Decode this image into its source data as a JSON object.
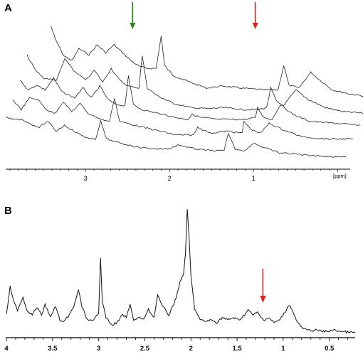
{
  "chart_data": [
    {
      "panel_label": "A",
      "type": "line",
      "xlabel": "[ppm]",
      "x_reversed": true,
      "xlim": [
        3.95,
        -0.15
      ],
      "xticks": [
        3,
        2,
        1
      ],
      "tick_labels": [
        "3",
        "2",
        "1"
      ],
      "stack_offset_ppm": 0.085,
      "arrows": [
        {
          "color": "#2e7d1f",
          "x": 2.44
        },
        {
          "color": "#e02020",
          "x": 0.98
        }
      ],
      "series": [
        {
          "values": [
            [
              3.75,
              0.85
            ],
            [
              3.7,
              0.72
            ],
            [
              3.6,
              0.55
            ],
            [
              3.5,
              0.5
            ],
            [
              3.42,
              0.62
            ],
            [
              3.3,
              0.56
            ],
            [
              3.2,
              0.66
            ],
            [
              3.1,
              0.58
            ],
            [
              3.0,
              0.66
            ],
            [
              2.9,
              0.58
            ],
            [
              2.8,
              0.5
            ],
            [
              2.7,
              0.44
            ],
            [
              2.6,
              0.42
            ],
            [
              2.5,
              0.42
            ],
            [
              2.44,
              0.75
            ],
            [
              2.4,
              0.45
            ],
            [
              2.3,
              0.35
            ],
            [
              2.1,
              0.28
            ],
            [
              1.9,
              0.22
            ],
            [
              1.7,
              0.24
            ],
            [
              1.5,
              0.22
            ],
            [
              1.2,
              0.2
            ],
            [
              1.05,
              0.2
            ],
            [
              0.98,
              0.45
            ],
            [
              0.92,
              0.25
            ],
            [
              0.8,
              0.22
            ],
            [
              0.66,
              0.38
            ],
            [
              0.55,
              0.3
            ],
            [
              0.4,
              0.2
            ],
            [
              0.2,
              0.16
            ],
            [
              0.05,
              0.14
            ],
            [
              -0.1,
              0.14
            ]
          ]
        },
        {
          "values": [
            [
              3.95,
              0.55
            ],
            [
              3.85,
              0.4
            ],
            [
              3.75,
              0.32
            ],
            [
              3.6,
              0.3
            ],
            [
              3.5,
              0.52
            ],
            [
              3.4,
              0.4
            ],
            [
              3.25,
              0.3
            ],
            [
              3.15,
              0.4
            ],
            [
              3.05,
              0.28
            ],
            [
              2.95,
              0.42
            ],
            [
              2.85,
              0.3
            ],
            [
              2.75,
              0.24
            ],
            [
              2.62,
              0.22
            ],
            [
              2.58,
              0.55
            ],
            [
              2.52,
              0.22
            ],
            [
              2.4,
              0.14
            ],
            [
              2.2,
              0.06
            ],
            [
              2.0,
              0.02
            ],
            [
              1.8,
              0.01
            ],
            [
              1.6,
              0.02
            ],
            [
              1.4,
              0.0
            ],
            [
              1.2,
              0.0
            ],
            [
              1.1,
              0.02
            ],
            [
              1.05,
              0.22
            ],
            [
              0.98,
              0.08
            ],
            [
              0.9,
              0.04
            ],
            [
              0.75,
              0.2
            ],
            [
              0.6,
              0.1
            ],
            [
              0.4,
              0.02
            ],
            [
              0.2,
              -0.02
            ],
            [
              -0.1,
              -0.04
            ]
          ]
        },
        {
          "values": [
            [
              3.95,
              0.3
            ],
            [
              3.85,
              0.2
            ],
            [
              3.75,
              0.25
            ],
            [
              3.65,
              0.2
            ],
            [
              3.55,
              0.32
            ],
            [
              3.45,
              0.18
            ],
            [
              3.3,
              0.12
            ],
            [
              3.2,
              0.22
            ],
            [
              3.1,
              0.12
            ],
            [
              3.0,
              0.24
            ],
            [
              2.9,
              0.1
            ],
            [
              2.8,
              0.05
            ],
            [
              2.7,
              0.04
            ],
            [
              2.66,
              0.35
            ],
            [
              2.6,
              0.05
            ],
            [
              2.5,
              0.0
            ],
            [
              2.3,
              -0.04
            ],
            [
              2.1,
              -0.08
            ],
            [
              1.95,
              -0.1
            ],
            [
              1.9,
              -0.05
            ],
            [
              1.8,
              -0.08
            ],
            [
              1.6,
              -0.1
            ],
            [
              1.4,
              -0.1
            ],
            [
              1.25,
              -0.1
            ],
            [
              1.15,
              -0.08
            ],
            [
              1.12,
              0.02
            ],
            [
              1.05,
              -0.08
            ],
            [
              0.95,
              -0.1
            ],
            [
              0.85,
              0.05
            ],
            [
              0.7,
              -0.05
            ],
            [
              0.5,
              -0.12
            ],
            [
              0.2,
              -0.14
            ],
            [
              -0.1,
              -0.16
            ]
          ]
        },
        {
          "values": [
            [
              3.95,
              0.1
            ],
            [
              3.85,
              0.0
            ],
            [
              3.75,
              0.12
            ],
            [
              3.65,
              0.1
            ],
            [
              3.55,
              0.0
            ],
            [
              3.45,
              -0.04
            ],
            [
              3.35,
              0.08
            ],
            [
              3.25,
              -0.02
            ],
            [
              3.15,
              0.06
            ],
            [
              3.05,
              -0.04
            ],
            [
              2.9,
              -0.1
            ],
            [
              2.8,
              -0.12
            ],
            [
              2.74,
              0.12
            ],
            [
              2.68,
              -0.12
            ],
            [
              2.5,
              -0.16
            ],
            [
              2.2,
              -0.22
            ],
            [
              2.0,
              -0.26
            ],
            [
              1.8,
              -0.26
            ],
            [
              1.75,
              -0.18
            ],
            [
              1.6,
              -0.24
            ],
            [
              1.4,
              -0.22
            ],
            [
              1.22,
              -0.24
            ],
            [
              1.2,
              -0.12
            ],
            [
              1.12,
              -0.2
            ],
            [
              1.0,
              -0.24
            ],
            [
              0.9,
              -0.14
            ],
            [
              0.75,
              -0.2
            ],
            [
              0.5,
              -0.28
            ],
            [
              0.2,
              -0.3
            ],
            [
              -0.1,
              -0.3
            ]
          ]
        },
        {
          "values": [
            [
              3.95,
              -0.08
            ],
            [
              3.85,
              -0.1
            ],
            [
              3.75,
              -0.1
            ],
            [
              3.65,
              -0.15
            ],
            [
              3.55,
              -0.18
            ],
            [
              3.45,
              -0.12
            ],
            [
              3.35,
              -0.22
            ],
            [
              3.25,
              -0.16
            ],
            [
              3.1,
              -0.24
            ],
            [
              2.95,
              -0.3
            ],
            [
              2.88,
              -0.3
            ],
            [
              2.82,
              -0.12
            ],
            [
              2.75,
              -0.3
            ],
            [
              2.6,
              -0.34
            ],
            [
              2.4,
              -0.38
            ],
            [
              2.2,
              -0.4
            ],
            [
              2.0,
              -0.4
            ],
            [
              1.9,
              -0.36
            ],
            [
              1.7,
              -0.4
            ],
            [
              1.5,
              -0.42
            ],
            [
              1.35,
              -0.42
            ],
            [
              1.3,
              -0.24
            ],
            [
              1.22,
              -0.4
            ],
            [
              1.1,
              -0.42
            ],
            [
              1.0,
              -0.34
            ],
            [
              0.9,
              -0.38
            ],
            [
              0.7,
              -0.44
            ],
            [
              0.4,
              -0.46
            ],
            [
              0.1,
              -0.48
            ],
            [
              -0.1,
              -0.48
            ]
          ]
        }
      ]
    },
    {
      "panel_label": "B",
      "type": "line",
      "xlabel": "",
      "x_reversed": true,
      "xlim": [
        4.0,
        0.22
      ],
      "ylim": [
        0,
        1.0
      ],
      "xticks": [
        4,
        3.5,
        3,
        2.5,
        2,
        1.5,
        1,
        0.5
      ],
      "tick_labels": [
        "4",
        "3.5",
        "3",
        "2.5",
        "2",
        "1.5",
        "1",
        "0.5"
      ],
      "arrows": [
        {
          "color": "#e02020",
          "x": 1.22
        }
      ],
      "series": [
        {
          "values": [
            [
              4.0,
              0.1
            ],
            [
              3.96,
              0.32
            ],
            [
              3.92,
              0.2
            ],
            [
              3.88,
              0.14
            ],
            [
              3.82,
              0.24
            ],
            [
              3.78,
              0.14
            ],
            [
              3.72,
              0.1
            ],
            [
              3.67,
              0.16
            ],
            [
              3.62,
              0.1
            ],
            [
              3.58,
              0.18
            ],
            [
              3.52,
              0.08
            ],
            [
              3.47,
              0.17
            ],
            [
              3.42,
              0.06
            ],
            [
              3.38,
              0.04
            ],
            [
              3.32,
              0.1
            ],
            [
              3.27,
              0.16
            ],
            [
              3.22,
              0.3
            ],
            [
              3.18,
              0.16
            ],
            [
              3.12,
              0.06
            ],
            [
              3.06,
              0.05
            ],
            [
              3.0,
              0.12
            ],
            [
              2.98,
              0.55
            ],
            [
              2.96,
              0.2
            ],
            [
              2.92,
              0.08
            ],
            [
              2.86,
              0.02
            ],
            [
              2.8,
              0.04
            ],
            [
              2.74,
              0.1
            ],
            [
              2.7,
              0.08
            ],
            [
              2.66,
              0.18
            ],
            [
              2.62,
              0.06
            ],
            [
              2.56,
              0.08
            ],
            [
              2.52,
              0.06
            ],
            [
              2.46,
              0.14
            ],
            [
              2.4,
              0.08
            ],
            [
              2.36,
              0.26
            ],
            [
              2.32,
              0.18
            ],
            [
              2.28,
              0.14
            ],
            [
              2.24,
              0.1
            ],
            [
              2.2,
              0.16
            ],
            [
              2.16,
              0.24
            ],
            [
              2.12,
              0.35
            ],
            [
              2.08,
              0.42
            ],
            [
              2.06,
              0.58
            ],
            [
              2.04,
              0.92
            ],
            [
              2.02,
              0.7
            ],
            [
              2.0,
              0.4
            ],
            [
              1.96,
              0.15
            ],
            [
              1.9,
              0.06
            ],
            [
              1.84,
              0.05
            ],
            [
              1.78,
              0.06
            ],
            [
              1.72,
              0.04
            ],
            [
              1.66,
              0.08
            ],
            [
              1.6,
              0.06
            ],
            [
              1.54,
              0.08
            ],
            [
              1.48,
              0.06
            ],
            [
              1.42,
              0.1
            ],
            [
              1.38,
              0.14
            ],
            [
              1.33,
              0.1
            ],
            [
              1.28,
              0.12
            ],
            [
              1.24,
              0.08
            ],
            [
              1.2,
              0.06
            ],
            [
              1.16,
              0.08
            ],
            [
              1.1,
              0.04
            ],
            [
              1.04,
              0.06
            ],
            [
              0.98,
              0.12
            ],
            [
              0.94,
              0.18
            ],
            [
              0.9,
              0.14
            ],
            [
              0.86,
              0.06
            ],
            [
              0.8,
              0.0
            ],
            [
              0.74,
              -0.02
            ],
            [
              0.65,
              -0.02
            ],
            [
              0.55,
              -0.03
            ],
            [
              0.45,
              -0.02
            ],
            [
              0.35,
              -0.03
            ],
            [
              0.22,
              -0.04
            ]
          ]
        }
      ]
    }
  ]
}
